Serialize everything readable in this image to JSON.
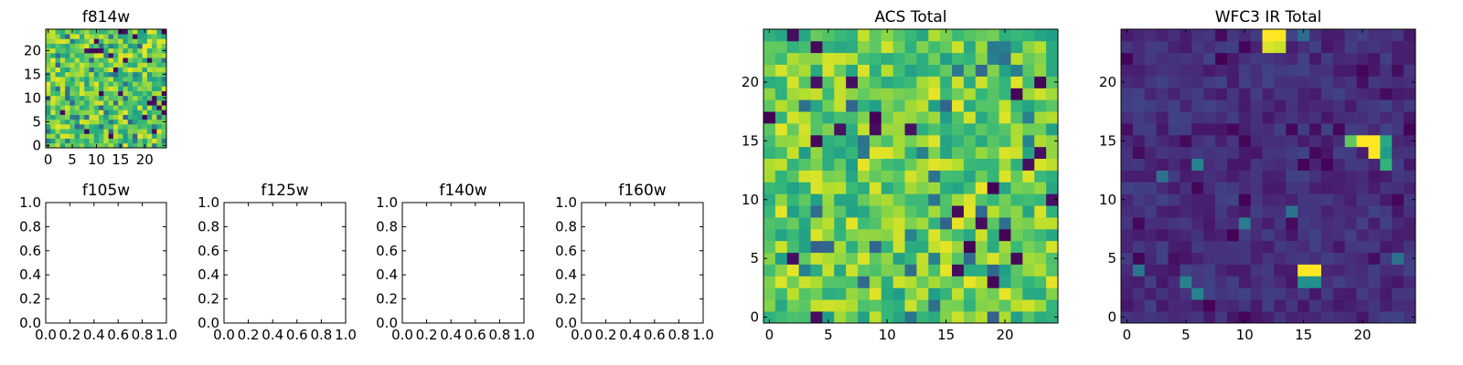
{
  "chart_data": [
    {
      "type": "heatmap",
      "title": "f814w",
      "xlim": [
        -0.5,
        24.5
      ],
      "ylim": [
        -0.5,
        24.5
      ],
      "xticks": [
        0,
        5,
        10,
        15,
        20
      ],
      "yticks": [
        0,
        5,
        10,
        15,
        20
      ],
      "xtick_labels": [
        "0",
        "5",
        "10",
        "15",
        "20"
      ],
      "ytick_labels": [
        "0",
        "5",
        "10",
        "15",
        "20"
      ],
      "grid": false,
      "colormap": "viridis",
      "seed": 11,
      "note": "25x25 pixel intensity grid, mostly high (green/yellow) with scattered dark pixels"
    },
    {
      "type": "scatter",
      "title": "f105w",
      "xlim": [
        0.0,
        1.0
      ],
      "ylim": [
        0.0,
        1.0
      ],
      "xticks": [
        0.0,
        0.2,
        0.4,
        0.6,
        0.8,
        1.0
      ],
      "yticks": [
        0.0,
        0.2,
        0.4,
        0.6,
        0.8,
        1.0
      ],
      "xtick_labels": [
        "0.0",
        "0.2",
        "0.4",
        "0.6",
        "0.8",
        "1.0"
      ],
      "ytick_labels": [
        "0.0",
        "0.2",
        "0.4",
        "0.6",
        "0.8",
        "1.0"
      ],
      "grid": false,
      "series": []
    },
    {
      "type": "scatter",
      "title": "f125w",
      "xlim": [
        0.0,
        1.0
      ],
      "ylim": [
        0.0,
        1.0
      ],
      "xticks": [
        0.0,
        0.2,
        0.4,
        0.6,
        0.8,
        1.0
      ],
      "yticks": [
        0.0,
        0.2,
        0.4,
        0.6,
        0.8,
        1.0
      ],
      "xtick_labels": [
        "0.0",
        "0.2",
        "0.4",
        "0.6",
        "0.8",
        "1.0"
      ],
      "ytick_labels": [
        "0.0",
        "0.2",
        "0.4",
        "0.6",
        "0.8",
        "1.0"
      ],
      "grid": false,
      "series": []
    },
    {
      "type": "scatter",
      "title": "f140w",
      "xlim": [
        0.0,
        1.0
      ],
      "ylim": [
        0.0,
        1.0
      ],
      "xticks": [
        0.0,
        0.2,
        0.4,
        0.6,
        0.8,
        1.0
      ],
      "yticks": [
        0.0,
        0.2,
        0.4,
        0.6,
        0.8,
        1.0
      ],
      "xtick_labels": [
        "0.0",
        "0.2",
        "0.4",
        "0.6",
        "0.8",
        "1.0"
      ],
      "ytick_labels": [
        "0.0",
        "0.2",
        "0.4",
        "0.6",
        "0.8",
        "1.0"
      ],
      "grid": false,
      "series": []
    },
    {
      "type": "scatter",
      "title": "f160w",
      "xlim": [
        0.0,
        1.0
      ],
      "ylim": [
        0.0,
        1.0
      ],
      "xticks": [
        0.0,
        0.2,
        0.4,
        0.6,
        0.8,
        1.0
      ],
      "yticks": [
        0.0,
        0.2,
        0.4,
        0.6,
        0.8,
        1.0
      ],
      "xtick_labels": [
        "0.0",
        "0.2",
        "0.4",
        "0.6",
        "0.8",
        "1.0"
      ],
      "ytick_labels": [
        "0.0",
        "0.2",
        "0.4",
        "0.6",
        "0.8",
        "1.0"
      ],
      "grid": false,
      "series": []
    },
    {
      "type": "heatmap",
      "title": "ACS Total",
      "xlim": [
        -0.5,
        24.5
      ],
      "ylim": [
        -0.5,
        24.5
      ],
      "xticks": [
        0,
        5,
        10,
        15,
        20
      ],
      "yticks": [
        0,
        5,
        10,
        15,
        20
      ],
      "xtick_labels": [
        "0",
        "5",
        "10",
        "15",
        "20"
      ],
      "ytick_labels": [
        "0",
        "5",
        "10",
        "15",
        "20"
      ],
      "grid": false,
      "colormap": "viridis",
      "seed": 29,
      "note": "25x25 pixel intensity grid, mostly high (green/yellow) with scattered dark pixels"
    },
    {
      "type": "heatmap",
      "title": "WFC3 IR Total",
      "xlim": [
        -0.5,
        24.5
      ],
      "ylim": [
        -0.5,
        24.5
      ],
      "xticks": [
        0,
        5,
        10,
        15,
        20
      ],
      "yticks": [
        0,
        5,
        10,
        15,
        20
      ],
      "xtick_labels": [
        "0",
        "5",
        "10",
        "15",
        "20"
      ],
      "ytick_labels": [
        "0",
        "5",
        "10",
        "15",
        "20"
      ],
      "grid": false,
      "colormap": "viridis",
      "seed": 47,
      "note": "25x25 grid, mostly low (dark purple); bright yellow spots near (12.5, 24), (20.5, 14.5) and (15.5, 4)",
      "hotspots": [
        {
          "x": 12,
          "y": 24,
          "value": 1.0
        },
        {
          "x": 13,
          "y": 24,
          "value": 1.0
        },
        {
          "x": 12,
          "y": 23,
          "value": 0.95
        },
        {
          "x": 13,
          "y": 23,
          "value": 0.92
        },
        {
          "x": 20,
          "y": 15,
          "value": 1.0
        },
        {
          "x": 21,
          "y": 15,
          "value": 1.0
        },
        {
          "x": 21,
          "y": 14,
          "value": 1.0
        },
        {
          "x": 19,
          "y": 15,
          "value": 0.75
        },
        {
          "x": 22,
          "y": 15,
          "value": 0.6
        },
        {
          "x": 22,
          "y": 14,
          "value": 0.55
        },
        {
          "x": 22,
          "y": 13,
          "value": 0.65
        },
        {
          "x": 15,
          "y": 4,
          "value": 1.0
        },
        {
          "x": 16,
          "y": 4,
          "value": 1.0
        },
        {
          "x": 15,
          "y": 3,
          "value": 0.5
        },
        {
          "x": 16,
          "y": 3,
          "value": 0.5
        }
      ]
    }
  ]
}
